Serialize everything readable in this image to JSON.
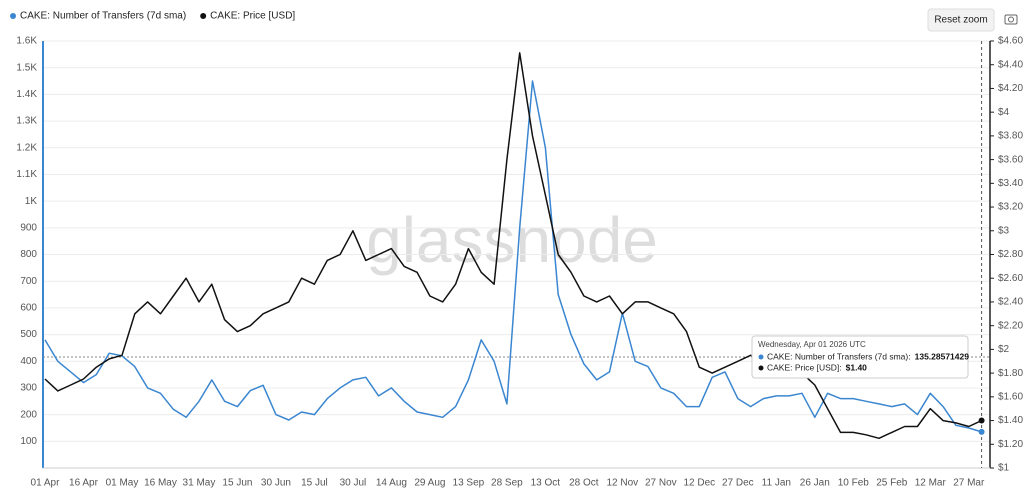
{
  "chart_data": {
    "type": "line",
    "watermark": "glassnode",
    "reset_button": "Reset zoom",
    "categories": [
      "01 Apr",
      null,
      null,
      "16 Apr",
      null,
      null,
      "01 May",
      null,
      null,
      "16 May",
      null,
      null,
      "31 May",
      null,
      null,
      "15 Jun",
      null,
      null,
      "30 Jun",
      null,
      null,
      "15 Jul",
      null,
      null,
      "30 Jul",
      null,
      null,
      "14 Aug",
      null,
      null,
      "29 Aug",
      null,
      null,
      "13 Sep",
      null,
      null,
      "28 Sep",
      null,
      null,
      "13 Oct",
      null,
      null,
      "28 Oct",
      null,
      null,
      "12 Nov",
      null,
      null,
      "27 Nov",
      null,
      null,
      "12 Dec",
      null,
      null,
      "27 Dec",
      null,
      null,
      "11 Jan",
      null,
      null,
      "26 Jan",
      null,
      null,
      "10 Feb",
      null,
      null,
      "25 Feb",
      null,
      null,
      "12 Mar",
      null,
      null,
      "27 Mar",
      null
    ],
    "series": [
      {
        "name": "CAKE: Number of Transfers (7d sma)",
        "color": "#3a86d0",
        "values": [
          480,
          400,
          360,
          320,
          350,
          430,
          420,
          380,
          300,
          280,
          220,
          190,
          250,
          330,
          250,
          230,
          290,
          310,
          200,
          180,
          210,
          200,
          260,
          300,
          330,
          340,
          270,
          300,
          250,
          210,
          200,
          190,
          230,
          330,
          480,
          400,
          240,
          900,
          1450,
          1200,
          650,
          500,
          390,
          330,
          360,
          580,
          400,
          380,
          300,
          280,
          230,
          230,
          340,
          360,
          260,
          230,
          260,
          270,
          270,
          280,
          190,
          280,
          260,
          260,
          250,
          240,
          230,
          240,
          200,
          280,
          230,
          160,
          150,
          135.28571429
        ]
      },
      {
        "name": "CAKE: Price [USD]",
        "color": "#111111",
        "axis": "y2",
        "values": [
          1.75,
          1.65,
          1.7,
          1.75,
          1.85,
          1.92,
          1.95,
          2.3,
          2.4,
          2.3,
          2.45,
          2.6,
          2.4,
          2.55,
          2.25,
          2.15,
          2.2,
          2.3,
          2.35,
          2.4,
          2.6,
          2.55,
          2.75,
          2.8,
          3.0,
          2.75,
          2.8,
          2.85,
          2.7,
          2.65,
          2.45,
          2.4,
          2.55,
          2.85,
          2.65,
          2.55,
          3.6,
          4.5,
          3.8,
          3.3,
          2.8,
          2.65,
          2.45,
          2.4,
          2.45,
          2.3,
          2.4,
          2.4,
          2.35,
          2.3,
          2.15,
          1.85,
          1.8,
          1.85,
          1.9,
          1.95,
          1.9,
          1.85,
          1.8,
          1.8,
          1.7,
          1.5,
          1.3,
          1.3,
          1.28,
          1.25,
          1.3,
          1.35,
          1.35,
          1.5,
          1.4,
          1.38,
          1.35,
          1.4
        ]
      }
    ],
    "ylim": [
      0,
      1600
    ],
    "yticks": [
      100,
      200,
      300,
      400,
      500,
      600,
      700,
      800,
      900,
      {
        "value": 1000,
        "label": "1K"
      },
      {
        "value": 1100,
        "label": "1.1K"
      },
      {
        "value": 1200,
        "label": "1.2K"
      },
      {
        "value": 1300,
        "label": "1.3K"
      },
      {
        "value": 1400,
        "label": "1.4K"
      },
      {
        "value": 1500,
        "label": "1.5K"
      },
      {
        "value": 1600,
        "label": "1.6K"
      }
    ],
    "y2lim": [
      1,
      4.6
    ],
    "y2ticks": [
      {
        "value": 1,
        "label": "$1"
      },
      {
        "value": 1.2,
        "label": "$1.20"
      },
      {
        "value": 1.4,
        "label": "$1.40"
      },
      {
        "value": 1.6,
        "label": "$1.60"
      },
      {
        "value": 1.8,
        "label": "$1.80"
      },
      {
        "value": 2,
        "label": "$2"
      },
      {
        "value": 2.2,
        "label": "$2.20"
      },
      {
        "value": 2.4,
        "label": "$2.40"
      },
      {
        "value": 2.6,
        "label": "$2.60"
      },
      {
        "value": 2.8,
        "label": "$2.80"
      },
      {
        "value": 3,
        "label": "$3"
      },
      {
        "value": 3.2,
        "label": "$3.20"
      },
      {
        "value": 3.4,
        "label": "$3.40"
      },
      {
        "value": 3.6,
        "label": "$3.60"
      },
      {
        "value": 3.8,
        "label": "$3.80"
      },
      {
        "value": 4,
        "label": "$4"
      },
      {
        "value": 4.2,
        "label": "$4.20"
      },
      {
        "value": 4.4,
        "label": "$4.40"
      },
      {
        "value": 4.6,
        "label": "$4.60"
      }
    ],
    "grid": true,
    "tooltip": {
      "title": "Wednesday, Apr 01 2026 UTC",
      "items": [
        {
          "label": "CAKE: Number of Transfers (7d sma):",
          "value": "135.28571429"
        },
        {
          "label": "CAKE: Price [USD]:",
          "value": "$1.40"
        }
      ]
    }
  }
}
